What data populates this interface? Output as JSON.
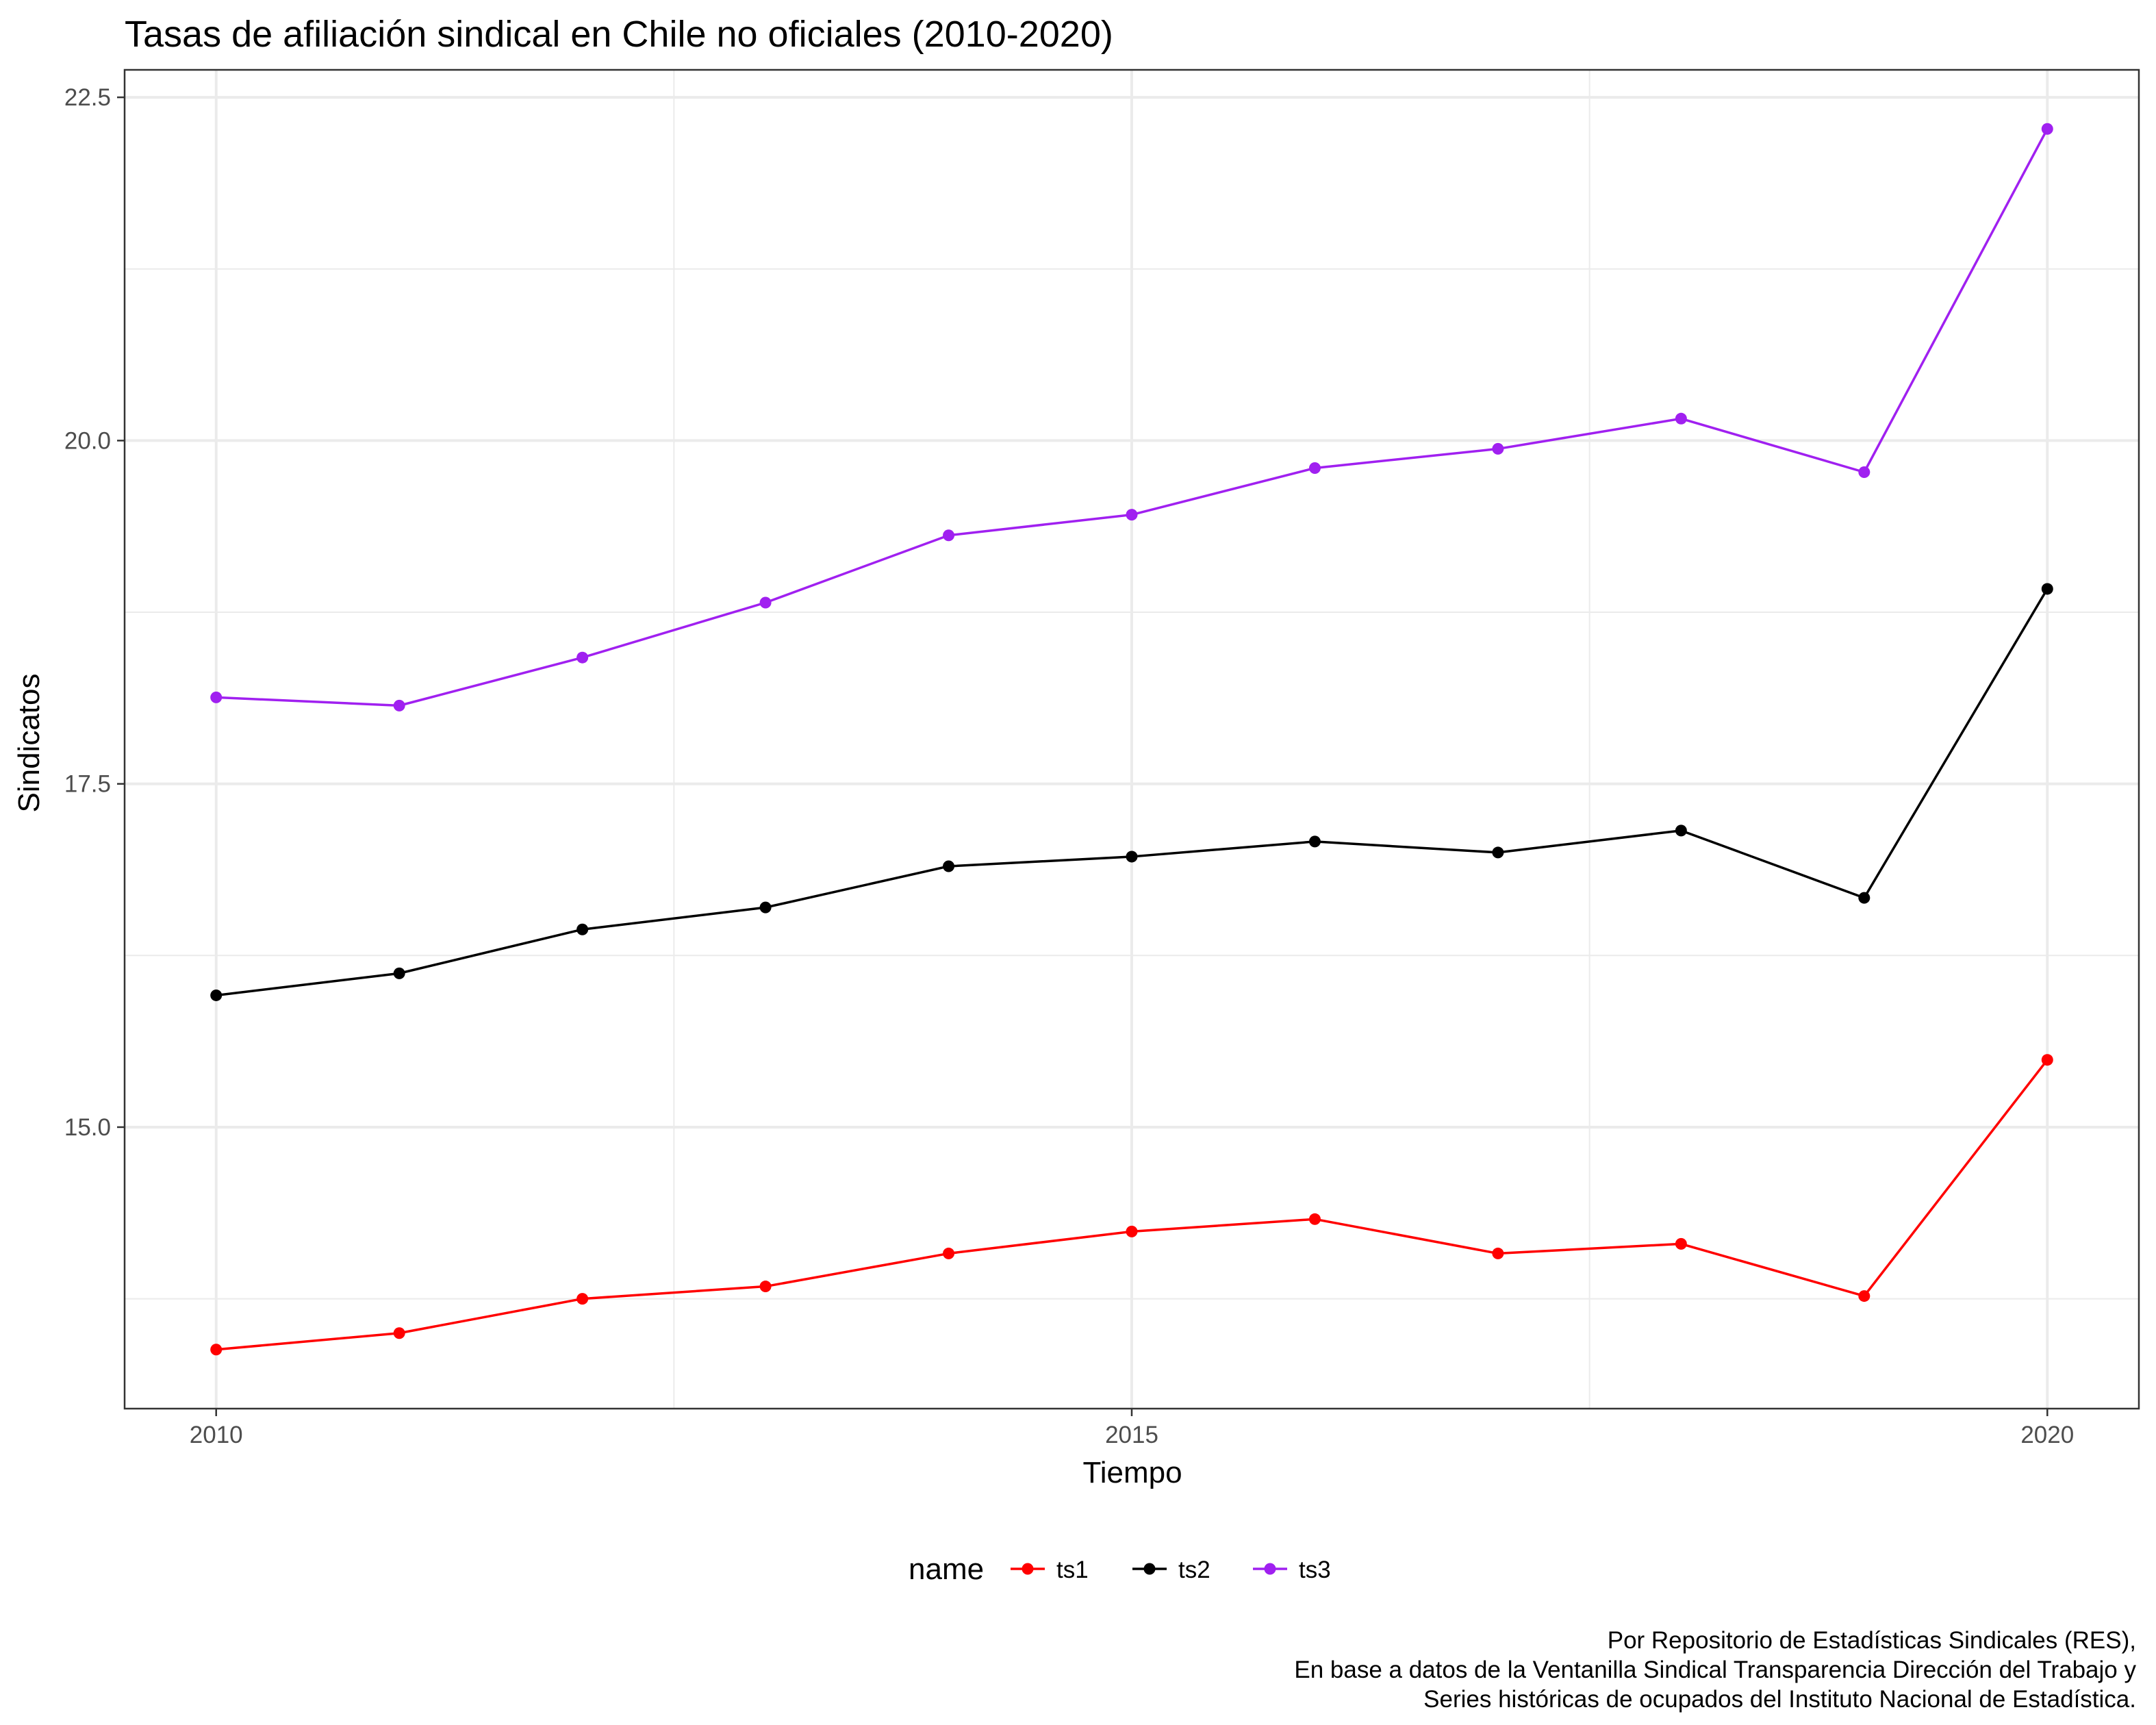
{
  "chart_data": {
    "type": "line",
    "title": "Tasas de afiliación sindical en Chile no oficiales (2010-2020)",
    "xlabel": "Tiempo",
    "ylabel": "Sindicatos",
    "x": [
      2010,
      2011,
      2012,
      2013,
      2014,
      2015,
      2016,
      2017,
      2018,
      2019,
      2020
    ],
    "x_ticks": [
      2010,
      2015,
      2020
    ],
    "x_tick_labels": [
      "2010",
      "2015",
      "2020"
    ],
    "y_ticks": [
      15.0,
      17.5,
      20.0,
      22.5
    ],
    "y_tick_labels": [
      "15.0",
      "17.5",
      "20.0",
      "22.5"
    ],
    "xlim": [
      2009.5,
      2020.5
    ],
    "ylim": [
      12.95,
      22.7
    ],
    "grid": true,
    "legend": {
      "title": "name",
      "position": "bottom"
    },
    "series": [
      {
        "name": "ts1",
        "color": "#ff0000",
        "values": [
          13.38,
          13.5,
          13.75,
          13.84,
          14.08,
          14.24,
          14.33,
          14.08,
          14.15,
          13.77,
          15.49
        ]
      },
      {
        "name": "ts2",
        "color": "#000000",
        "values": [
          15.96,
          16.12,
          16.44,
          16.6,
          16.9,
          16.97,
          17.08,
          17.0,
          17.16,
          16.67,
          18.92
        ]
      },
      {
        "name": "ts3",
        "color": "#a020f0",
        "values": [
          18.13,
          18.07,
          18.42,
          18.82,
          19.31,
          19.46,
          19.8,
          19.94,
          20.16,
          19.77,
          22.27
        ]
      }
    ],
    "caption": [
      "Por Repositorio de Estadísticas Sindicales (RES),",
      "En base a datos de la Ventanilla Sindical Transparencia Dirección del Trabajo y",
      "Series históricas de ocupados del Instituto Nacional de Estadística."
    ]
  }
}
